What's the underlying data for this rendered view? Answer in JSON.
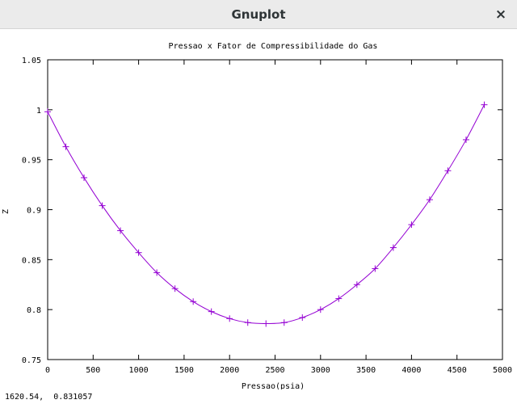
{
  "window": {
    "title": "Gnuplot",
    "close_glyph": "×"
  },
  "status_bar": {
    "coordinates": "1620.54,  0.831057"
  },
  "colors": {
    "curve": "#9400d3"
  },
  "chart_data": {
    "type": "line",
    "title": "Pressao x Fator de Compressibilidade do Gas",
    "xlabel": "Pressao(psia)",
    "ylabel": "Z",
    "xlim": [
      0,
      5000
    ],
    "ylim": [
      0.75,
      1.05
    ],
    "x_ticks": [
      0,
      500,
      1000,
      1500,
      2000,
      2500,
      3000,
      3500,
      4000,
      4500,
      5000
    ],
    "x_tick_labels": [
      "0",
      "500",
      "1000",
      "1500",
      "2000",
      "2500",
      "3000",
      "3500",
      "4000",
      "4500",
      "5000"
    ],
    "y_ticks": [
      0.75,
      0.8,
      0.85,
      0.9,
      0.95,
      1.0,
      1.05
    ],
    "y_tick_labels": [
      "0.75",
      "0.8",
      "0.85",
      "0.9",
      "0.95",
      "1",
      "1.05"
    ],
    "grid": false,
    "marker": "+",
    "series": [
      {
        "x": [
          0,
          200,
          400,
          600,
          800,
          1000,
          1200,
          1400,
          1600,
          1800,
          2000,
          2200,
          2400,
          2600,
          2800,
          3000,
          3200,
          3400,
          3600,
          3800,
          4000,
          4200,
          4400,
          4600,
          4800
        ],
        "y": [
          0.998,
          0.963,
          0.932,
          0.904,
          0.879,
          0.857,
          0.837,
          0.821,
          0.808,
          0.798,
          0.791,
          0.787,
          0.786,
          0.787,
          0.792,
          0.8,
          0.811,
          0.825,
          0.841,
          0.862,
          0.885,
          0.91,
          0.939,
          0.97,
          1.005
        ]
      }
    ]
  }
}
